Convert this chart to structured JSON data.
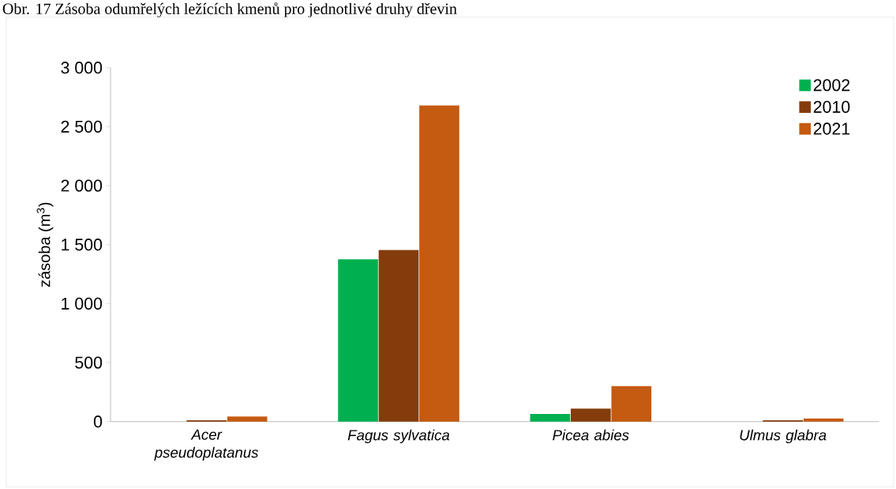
{
  "chart_data": {
    "type": "bar",
    "title": "Obr. 17 Zásoba odumřelých ležících kmenů pro jednotlivé druhy dřevin",
    "ylabel": "zásoba (m$^{3}$)",
    "categories": [
      "Acer pseudoplatanus",
      "Fagus sylvatica",
      "Picea abies",
      "Ulmus glabra"
    ],
    "series": [
      {
        "name": "2002",
        "color": "#00b050",
        "values": [
          0,
          1375,
          65,
          0
        ]
      },
      {
        "name": "2010",
        "color": "#843c0c",
        "values": [
          12,
          1455,
          110,
          12
        ]
      },
      {
        "name": "2021",
        "color": "#c55a11",
        "values": [
          43,
          2680,
          300,
          26
        ]
      }
    ],
    "ylim": [
      0,
      3000
    ],
    "yticks": [
      {
        "value": 0,
        "label": "0"
      },
      {
        "value": 500,
        "label": "500"
      },
      {
        "value": 1000,
        "label": "1 000"
      },
      {
        "value": 1500,
        "label": "1 500"
      },
      {
        "value": 2000,
        "label": "2 000"
      },
      {
        "value": 2500,
        "label": "2 500"
      },
      {
        "value": 3000,
        "label": "3 000"
      }
    ],
    "grid": false,
    "legend": "top right"
  }
}
